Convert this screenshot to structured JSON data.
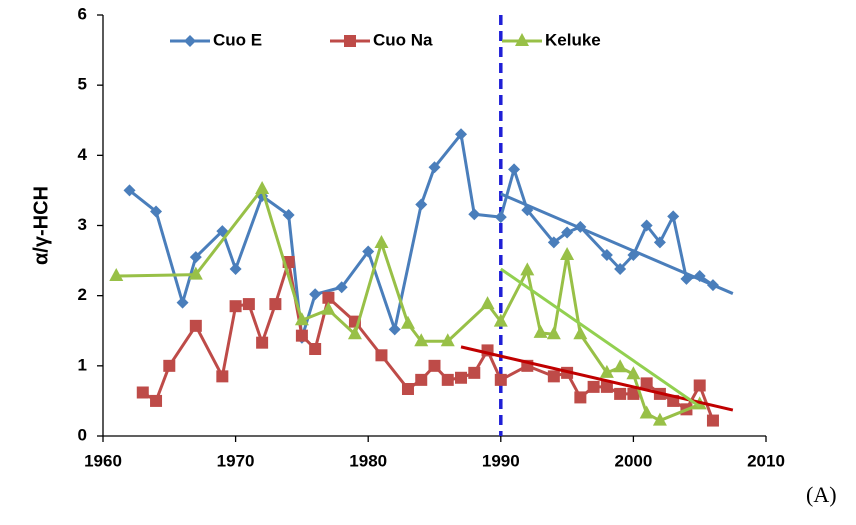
{
  "chart_data": {
    "type": "line",
    "y_label": "α/γ-HCH",
    "panel_label": "(A)",
    "xlim": [
      1960,
      2010
    ],
    "xticks": [
      1960,
      1970,
      1980,
      1990,
      2000,
      2010
    ],
    "ylim": [
      0,
      6
    ],
    "yticks": [
      0,
      1,
      2,
      3,
      4,
      5,
      6
    ],
    "vline": {
      "x": 1990,
      "color": "#1f1fd6"
    },
    "series": [
      {
        "name": "Cuo E",
        "color": "#4a7ebb",
        "marker": "diamond",
        "x": [
          1962,
          1964,
          1966,
          1967,
          1969,
          1970,
          1972,
          1974,
          1975,
          1976,
          1978,
          1980,
          1982,
          1984,
          1985,
          1987,
          1988,
          1990,
          1991,
          1992,
          1994,
          1995,
          1996,
          1998,
          1999,
          2000,
          2001,
          2002,
          2003,
          2004,
          2005,
          2006
        ],
        "values": [
          3.5,
          3.2,
          1.9,
          2.55,
          2.92,
          2.38,
          3.42,
          3.15,
          1.4,
          2.02,
          2.12,
          2.63,
          1.52,
          3.3,
          3.83,
          4.3,
          3.16,
          3.12,
          3.8,
          3.22,
          2.76,
          2.9,
          2.98,
          2.58,
          2.38,
          2.58,
          3.0,
          2.76,
          3.13,
          2.24,
          2.28,
          2.15
        ]
      },
      {
        "name": "Cuo Na",
        "color": "#be4b48",
        "marker": "square",
        "x": [
          1963,
          1964,
          1965,
          1967,
          1969,
          1970,
          1971,
          1972,
          1973,
          1974,
          1975,
          1976,
          1977,
          1979,
          1981,
          1983,
          1984,
          1985,
          1986,
          1987,
          1988,
          1989,
          1990,
          1992,
          1994,
          1995,
          1996,
          1997,
          1998,
          1999,
          2000,
          2001,
          2002,
          2003,
          2004,
          2005,
          2006
        ],
        "values": [
          0.62,
          0.5,
          1.0,
          1.57,
          0.85,
          1.85,
          1.88,
          1.33,
          1.88,
          2.48,
          1.43,
          1.24,
          1.97,
          1.63,
          1.15,
          0.67,
          0.8,
          1.0,
          0.8,
          0.83,
          0.9,
          1.22,
          0.8,
          1.0,
          0.85,
          0.9,
          0.55,
          0.7,
          0.7,
          0.6,
          0.6,
          0.75,
          0.6,
          0.5,
          0.38,
          0.72,
          0.22
        ]
      },
      {
        "name": "Keluke",
        "color": "#98c047",
        "marker": "triangle",
        "x": [
          1961,
          1967,
          1972,
          1975,
          1977,
          1979,
          1981,
          1983,
          1984,
          1986,
          1989,
          1990,
          1992,
          1993,
          1994,
          1995,
          1996,
          1998,
          1999,
          2000,
          2001,
          2002,
          2005
        ],
        "values": [
          2.28,
          2.3,
          3.52,
          1.65,
          1.8,
          1.45,
          2.75,
          1.6,
          1.35,
          1.35,
          1.88,
          1.63,
          2.36,
          1.47,
          1.45,
          2.58,
          1.45,
          0.9,
          0.98,
          0.88,
          0.32,
          0.22,
          0.45
        ]
      }
    ],
    "trend_lines": [
      {
        "color": "#4a7ebb",
        "x": [
          1990,
          2007.5
        ],
        "values": [
          3.45,
          2.03
        ]
      },
      {
        "color": "#c00000",
        "x": [
          1987,
          2007.5
        ],
        "values": [
          1.27,
          0.37
        ]
      },
      {
        "color": "#92d050",
        "x": [
          1990,
          2005
        ],
        "values": [
          2.38,
          0.42
        ]
      }
    ]
  }
}
